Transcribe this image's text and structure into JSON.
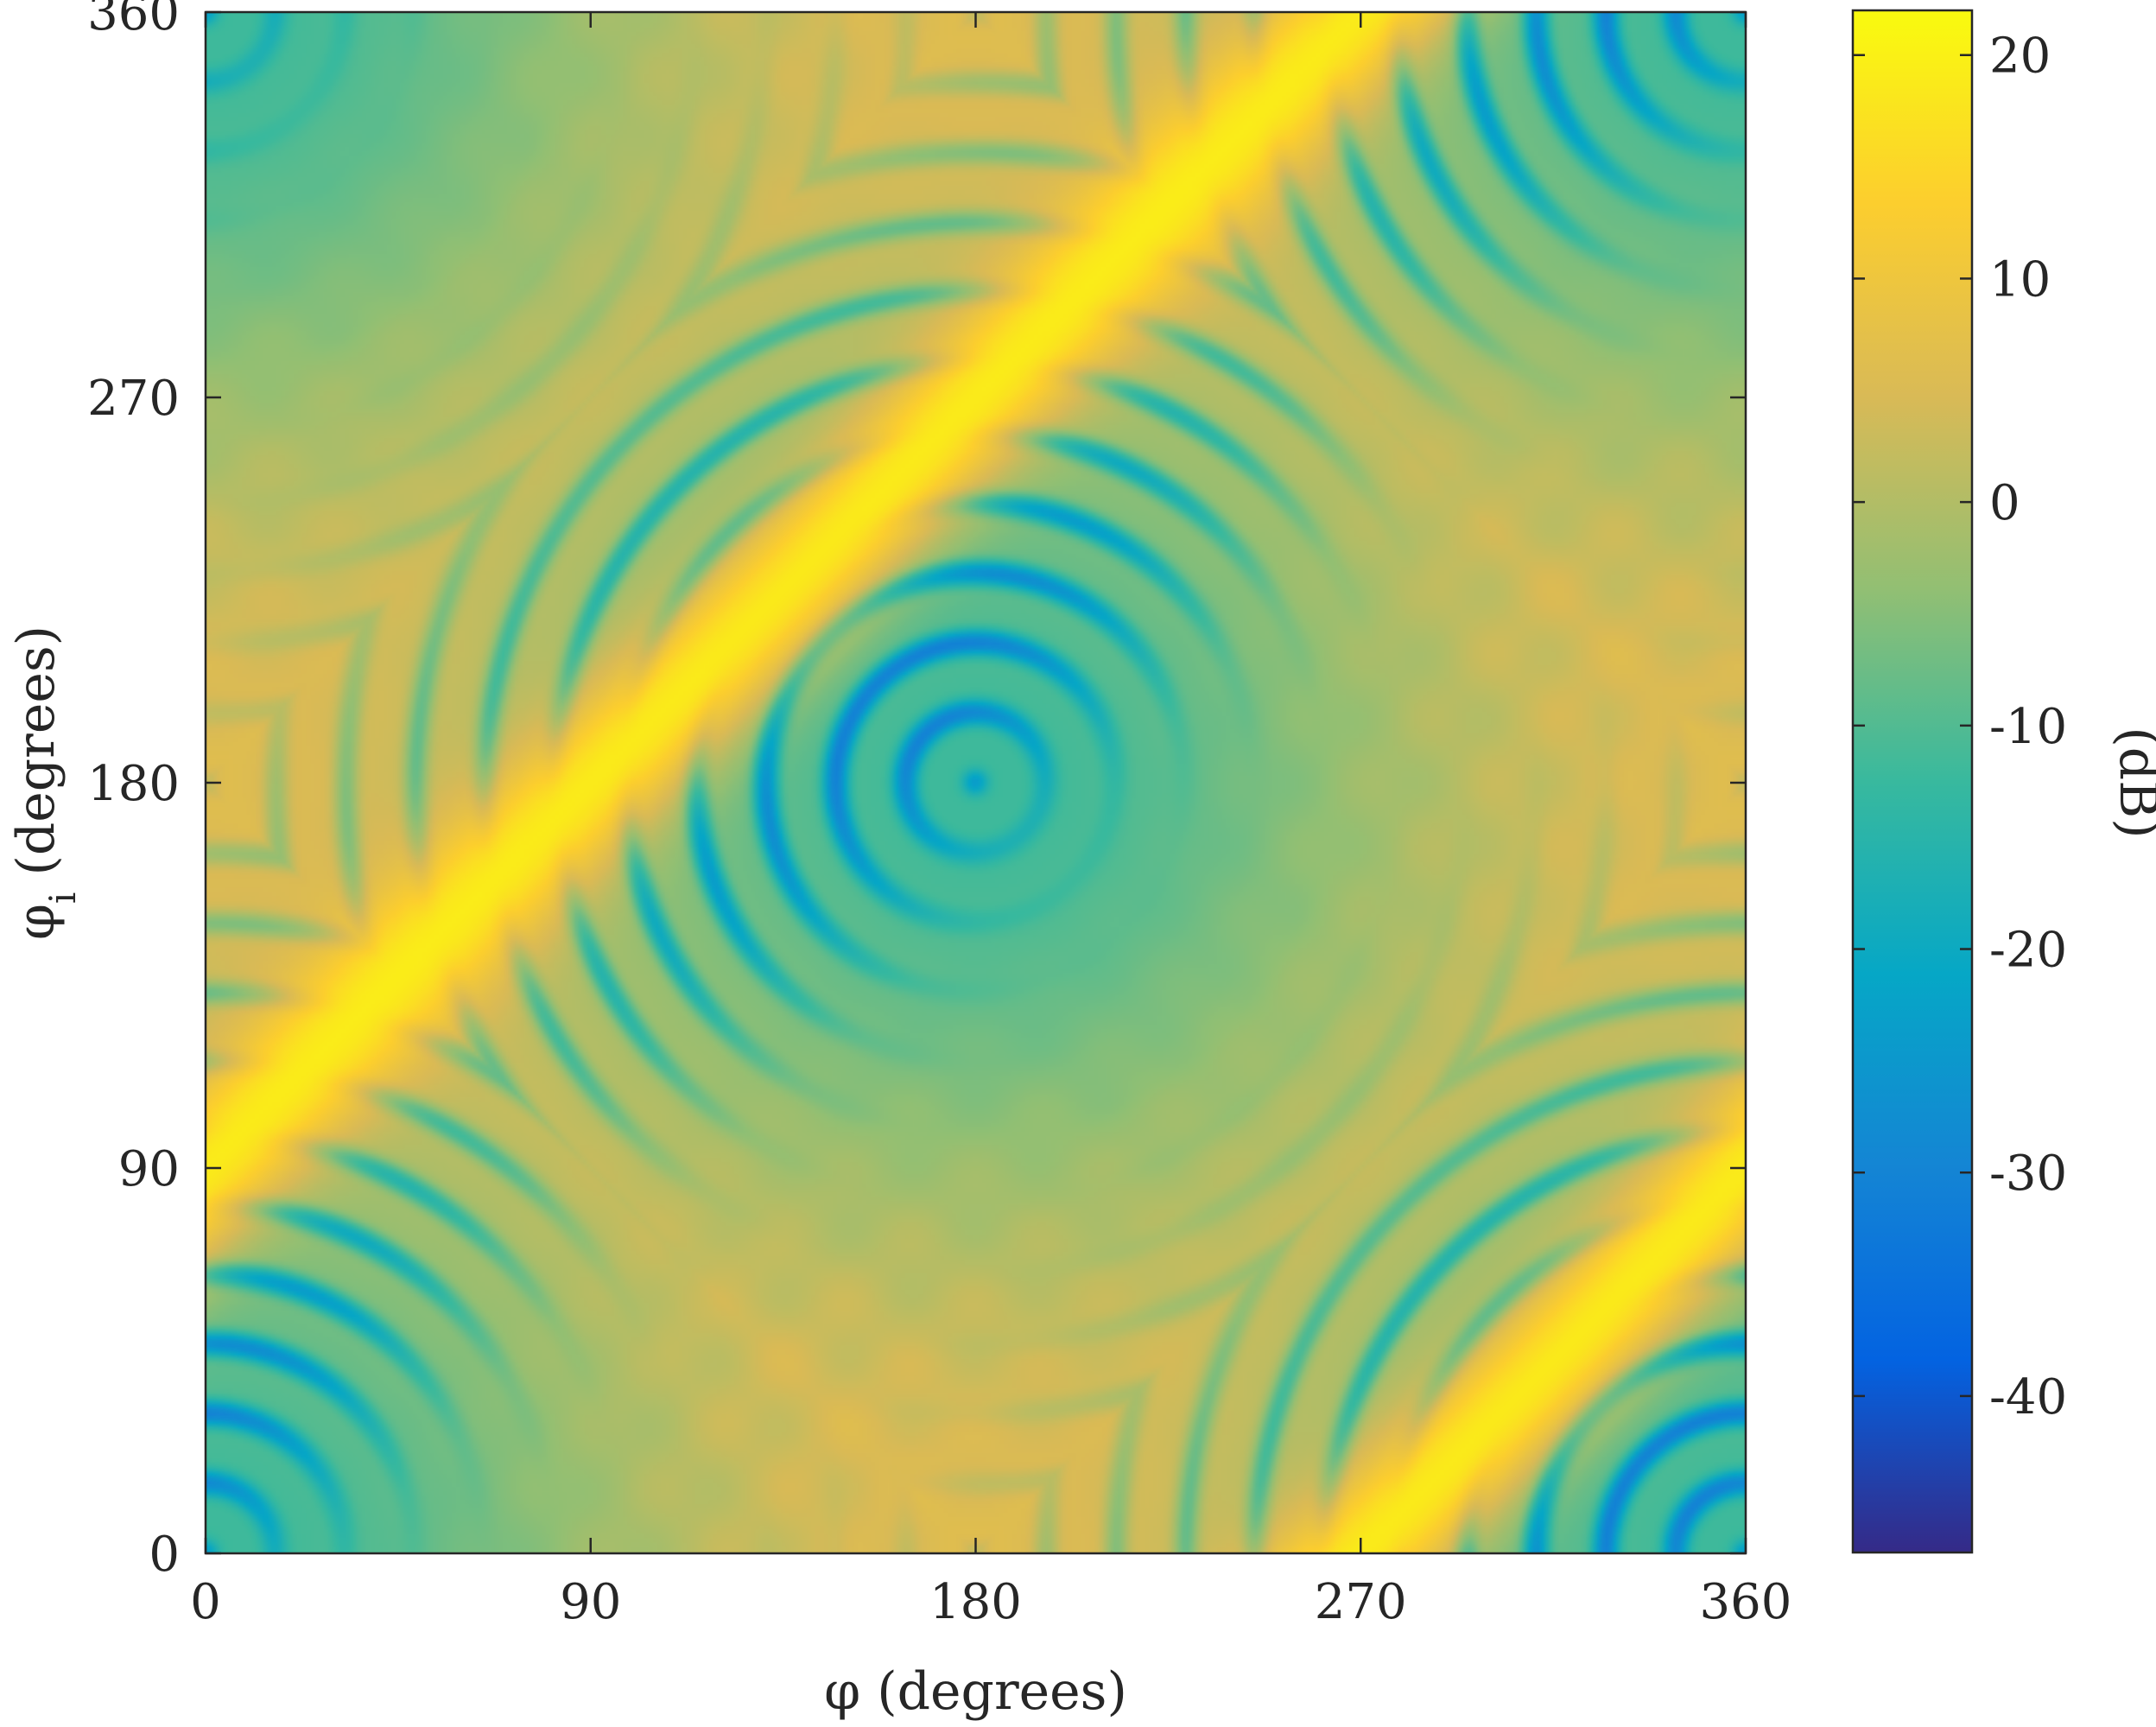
{
  "chart_data": {
    "type": "heatmap",
    "title": "",
    "xlabel": "φ (degrees)",
    "ylabel": "φi (degrees)",
    "ylabel_parts": {
      "symbol": "φ",
      "subscript": "i",
      "rest": " (degrees)"
    },
    "xlim": [
      0,
      360
    ],
    "ylim": [
      0,
      360
    ],
    "xticks": [
      0,
      90,
      180,
      270,
      360
    ],
    "yticks": [
      0,
      90,
      180,
      270,
      360
    ],
    "xtick_labels": [
      "0",
      "90",
      "180",
      "270",
      "360"
    ],
    "ytick_labels": [
      "0",
      "90",
      "180",
      "270",
      "360"
    ],
    "grid": false,
    "colorbar": {
      "label": "(dB)",
      "range": [
        -47,
        22
      ],
      "ticks": [
        20,
        10,
        0,
        -10,
        -20,
        -30,
        -40
      ],
      "tick_labels": [
        "20",
        "10",
        "0",
        "-10",
        "-20",
        "-30",
        "-40"
      ],
      "colormap": "parula",
      "colormap_stops": [
        "#352a87",
        "#0363e1",
        "#1485d4",
        "#06a7c6",
        "#38b99e",
        "#92bf73",
        "#d9ba56",
        "#fcce2e",
        "#f9fb0e"
      ]
    },
    "features": {
      "specular_ridge": {
        "description_free_values": true,
        "peak_db": 20,
        "line": "phi_i = phi + 90 (mod 360)"
      },
      "background_level_db": 8,
      "null_regions_center_db": -12
    }
  }
}
